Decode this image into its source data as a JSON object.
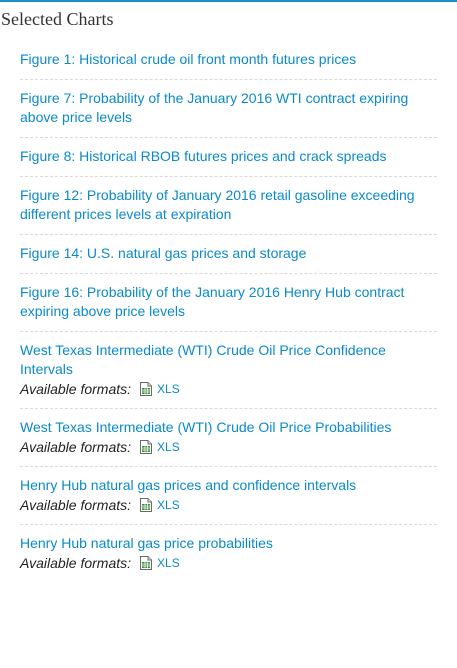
{
  "heading": "Selected Charts",
  "colors": {
    "link": "#0b8ac9",
    "rule": "#1b8ec2",
    "separator": "#d9d9d9",
    "xls_icon": "#3a8f3a"
  },
  "charts": [
    {
      "title": "Figure 1: Historical crude oil front month futures prices"
    },
    {
      "title": "Figure 7: Probability of the January 2016 WTI contract expiring above price levels"
    },
    {
      "title": "Figure 8: Historical RBOB futures prices and crack spreads"
    },
    {
      "title": "Figure 12: Probability of January 2016 retail gasoline exceeding different prices levels at expiration"
    },
    {
      "title": "Figure 14: U.S. natural gas prices and storage"
    },
    {
      "title": "Figure 16: Probability of the January 2016 Henry Hub contract expiring above price levels"
    },
    {
      "title": "West Texas Intermediate (WTI) Crude Oil Price Confidence Intervals",
      "formats_label": "Available formats:",
      "format": "XLS",
      "format_icon": "spreadsheet-icon"
    },
    {
      "title": "West Texas Intermediate (WTI) Crude Oil Price Probabilities",
      "formats_label": "Available formats:",
      "format": "XLS",
      "format_icon": "spreadsheet-icon"
    },
    {
      "title": "Henry Hub natural gas prices and confidence intervals",
      "formats_label": "Available formats:",
      "format": "XLS",
      "format_icon": "spreadsheet-icon"
    },
    {
      "title": "Henry Hub natural gas price probabilities",
      "formats_label": "Available formats:",
      "format": "XLS",
      "format_icon": "spreadsheet-icon"
    }
  ]
}
